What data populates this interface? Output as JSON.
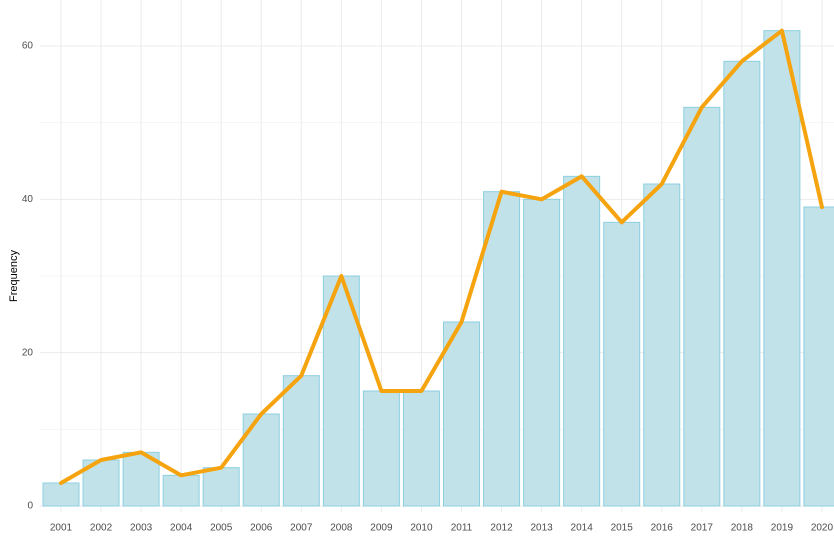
{
  "chart_data": {
    "type": "bar",
    "y_label": "Frequency",
    "categories": [
      "2001",
      "2002",
      "2003",
      "2004",
      "2005",
      "2006",
      "2007",
      "2008",
      "2009",
      "2010",
      "2011",
      "2012",
      "2013",
      "2014",
      "2015",
      "2016",
      "2017",
      "2018",
      "2019",
      "2020"
    ],
    "values": [
      3,
      6,
      7,
      4,
      5,
      12,
      17,
      30,
      15,
      15,
      24,
      41,
      40,
      43,
      37,
      42,
      52,
      58,
      62,
      39
    ],
    "color": "#c2e2ea",
    "edge_color": "#8ccfe0",
    "line_color": "#f5a30f",
    "ylim": [
      0,
      66
    ],
    "yticks": [
      0,
      20,
      40,
      60
    ],
    "y_minor_ticks": [
      10,
      30,
      50
    ],
    "grid": true
  }
}
